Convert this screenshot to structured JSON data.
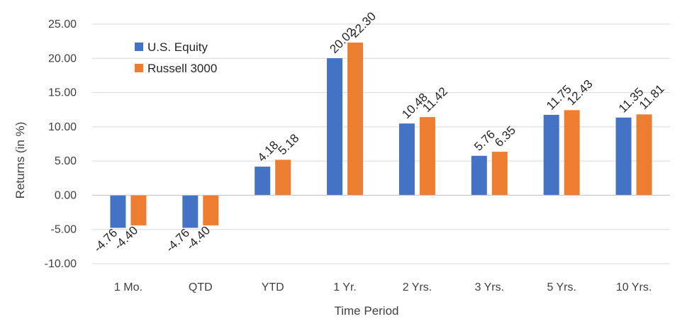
{
  "chart_data": {
    "type": "bar",
    "categories": [
      "1 Mo.",
      "QTD",
      "YTD",
      "1 Yr.",
      "2 Yrs.",
      "3 Yrs.",
      "5 Yrs.",
      "10 Yrs."
    ],
    "series": [
      {
        "name": "U.S. Equity",
        "color": "#4472C4",
        "values": [
          -4.76,
          -4.76,
          4.18,
          20.02,
          10.48,
          5.76,
          11.75,
          11.35
        ],
        "labels": [
          "-4.76",
          "-4.76",
          "4.18",
          "20.02",
          "10.48",
          "5.76",
          "11.75",
          "11.35"
        ]
      },
      {
        "name": "Russell 3000",
        "color": "#ED7D31",
        "values": [
          -4.4,
          -4.4,
          5.18,
          22.3,
          11.42,
          6.35,
          12.43,
          11.81
        ],
        "labels": [
          "-4.40",
          "-4.40",
          "5.18",
          "22.30",
          "11.42",
          "6.35",
          "12.43",
          "11.81"
        ]
      }
    ],
    "ylim": [
      -10,
      25
    ],
    "yticks": [
      -10,
      -5,
      0,
      5,
      10,
      15,
      20,
      25
    ],
    "ytick_labels": [
      "-10.00",
      "-5.00",
      "0.00",
      "5.00",
      "10.00",
      "15.00",
      "20.00",
      "25.00"
    ],
    "xlabel": "Time Period",
    "ylabel": "Returns (in %)",
    "grid": true,
    "legend_position": "top-left"
  }
}
